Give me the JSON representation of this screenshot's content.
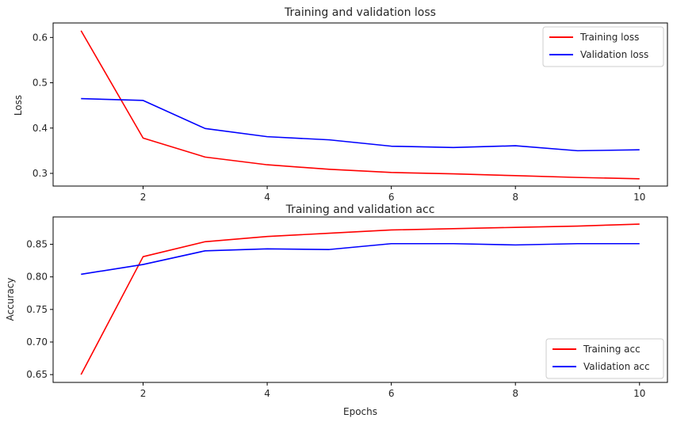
{
  "chart_data": [
    {
      "type": "line",
      "title": "Training and validation loss",
      "xlabel": "",
      "ylabel": "Loss",
      "xlim": [
        0.55,
        10.45
      ],
      "ylim": [
        0.272,
        0.632
      ],
      "xticks": [
        2,
        4,
        6,
        8,
        10
      ],
      "xtick_labels": [
        "2",
        "4",
        "6",
        "8",
        "10"
      ],
      "yticks": [
        0.3,
        0.4,
        0.5,
        0.6
      ],
      "ytick_labels": [
        "0.3",
        "0.4",
        "0.5",
        "0.6"
      ],
      "grid": false,
      "legend_position": "top-right",
      "x": [
        1,
        2,
        3,
        4,
        5,
        6,
        7,
        8,
        9,
        10
      ],
      "series": [
        {
          "name": "Training loss",
          "color": "#ff0000",
          "values": [
            0.615,
            0.378,
            0.336,
            0.319,
            0.309,
            0.302,
            0.299,
            0.295,
            0.291,
            0.288
          ]
        },
        {
          "name": "Validation loss",
          "color": "#0000ff",
          "values": [
            0.465,
            0.461,
            0.399,
            0.381,
            0.374,
            0.36,
            0.357,
            0.361,
            0.35,
            0.352
          ]
        }
      ]
    },
    {
      "type": "line",
      "title": "Training and validation acc",
      "xlabel": "Epochs",
      "ylabel": "Accuracy",
      "xlim": [
        0.55,
        10.45
      ],
      "ylim": [
        0.638,
        0.892
      ],
      "xticks": [
        2,
        4,
        6,
        8,
        10
      ],
      "xtick_labels": [
        "2",
        "4",
        "6",
        "8",
        "10"
      ],
      "yticks": [
        0.65,
        0.7,
        0.75,
        0.8,
        0.85
      ],
      "ytick_labels": [
        "0.65",
        "0.70",
        "0.75",
        "0.80",
        "0.85"
      ],
      "grid": false,
      "legend_position": "bottom-right",
      "x": [
        1,
        2,
        3,
        4,
        5,
        6,
        7,
        8,
        9,
        10
      ],
      "series": [
        {
          "name": "Training acc",
          "color": "#ff0000",
          "values": [
            0.65,
            0.831,
            0.854,
            0.862,
            0.867,
            0.872,
            0.874,
            0.876,
            0.878,
            0.881
          ]
        },
        {
          "name": "Validation acc",
          "color": "#0000ff",
          "values": [
            0.804,
            0.819,
            0.84,
            0.843,
            0.842,
            0.851,
            0.851,
            0.849,
            0.851,
            0.851
          ]
        }
      ]
    }
  ]
}
